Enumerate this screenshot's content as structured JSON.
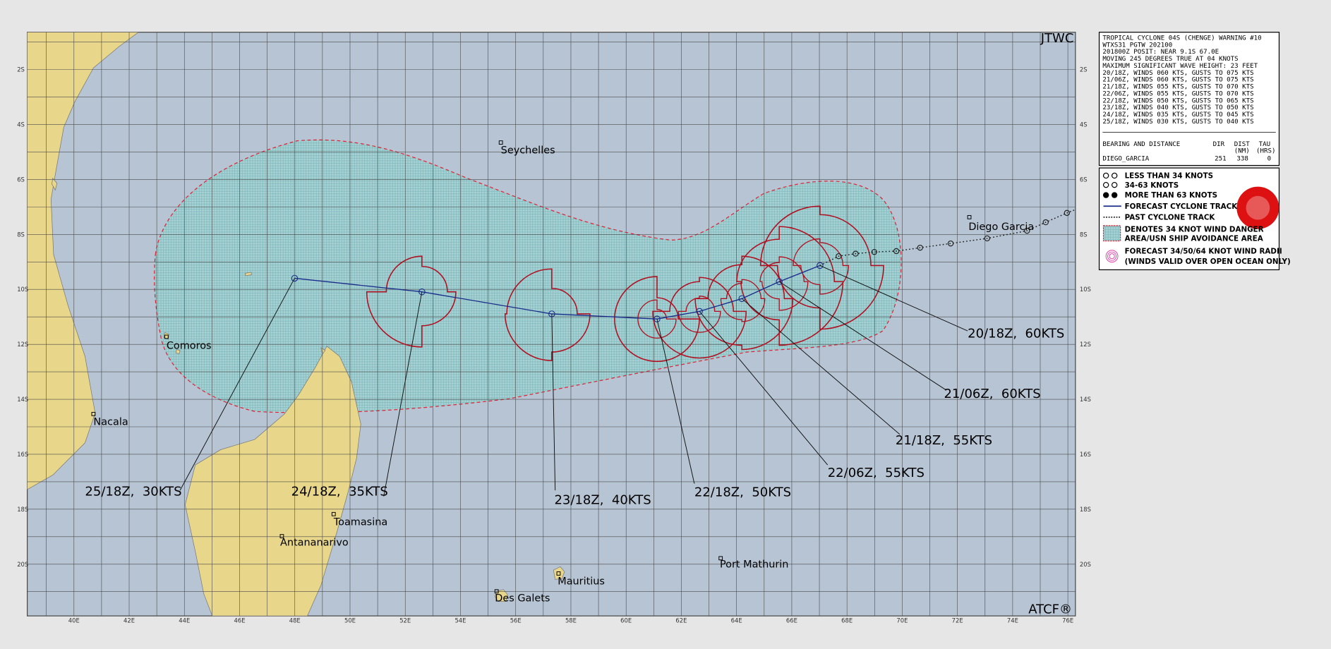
{
  "header": {
    "agency": "JTWC",
    "footer": "ATCF®"
  },
  "lat_labels": [
    "2S",
    "4S",
    "6S",
    "8S",
    "10S",
    "12S",
    "14S",
    "16S",
    "18S",
    "20S"
  ],
  "lon_labels": [
    "40E",
    "42E",
    "44E",
    "46E",
    "48E",
    "50E",
    "52E",
    "54E",
    "56E",
    "58E",
    "60E",
    "62E",
    "64E",
    "66E",
    "68E",
    "70E",
    "72E",
    "74E",
    "76E"
  ],
  "places": [
    "Seychelles",
    "Diego Garcia",
    "Comoros",
    "Nacala",
    "Toamasina",
    "Antananarivo",
    "Port Mathurin",
    "Mauritius",
    "Des Galets"
  ],
  "forecast_labels": [
    "20/18Z,  60KTS",
    "21/06Z,  60KTS",
    "21/18Z,  55KTS",
    "22/06Z,  55KTS",
    "22/18Z,  50KTS",
    "23/18Z,  40KTS",
    "24/18Z,  35KTS",
    "25/18Z,  30KTS"
  ],
  "warning": {
    "lines": [
      "TROPICAL CYCLONE 04S (CHENGE) WARNING #10",
      "WTXS31 PGTW 202100",
      "201800Z POSIT: NEAR 9.1S 67.0E",
      "MOVING 245 DEGREES TRUE AT 04 KNOTS",
      "MAXIMUM SIGNIFICANT WAVE HEIGHT: 23 FEET",
      "20/18Z, WINDS 060 KTS, GUSTS TO 075 KTS",
      "21/06Z, WINDS 060 KTS, GUSTS TO 075 KTS",
      "21/18Z, WINDS 055 KTS, GUSTS TO 070 KTS",
      "22/06Z, WINDS 055 KTS, GUSTS TO 070 KTS",
      "22/18Z, WINDS 050 KTS, GUSTS TO 065 KTS",
      "23/18Z, WINDS 040 KTS, GUSTS TO 050 KTS",
      "24/18Z, WINDS 035 KTS, GUSTS TO 045 KTS",
      "25/18Z, WINDS 030 KTS, GUSTS TO 040 KTS"
    ]
  },
  "bearing": {
    "title": "BEARING AND DISTANCE",
    "columns": [
      "DIR",
      "DIST",
      "TAU"
    ],
    "units": [
      "(NM)",
      "(HRS)"
    ],
    "row": [
      "DIEGO_GARCIA",
      "251",
      "338",
      "0"
    ]
  },
  "legend": [
    "LESS THAN 34 KNOTS",
    "34-63 KNOTS",
    "MORE THAN 63 KNOTS",
    "FORECAST CYCLONE TRACK",
    "PAST CYCLONE TRACK",
    "DENOTES 34 KNOT WIND DANGER",
    "AREA/USN SHIP AVOIDANCE AREA",
    "FORECAST 34/50/64 KNOT WIND RADII",
    "(WINDS VALID OVER OPEN OCEAN ONLY)"
  ]
}
